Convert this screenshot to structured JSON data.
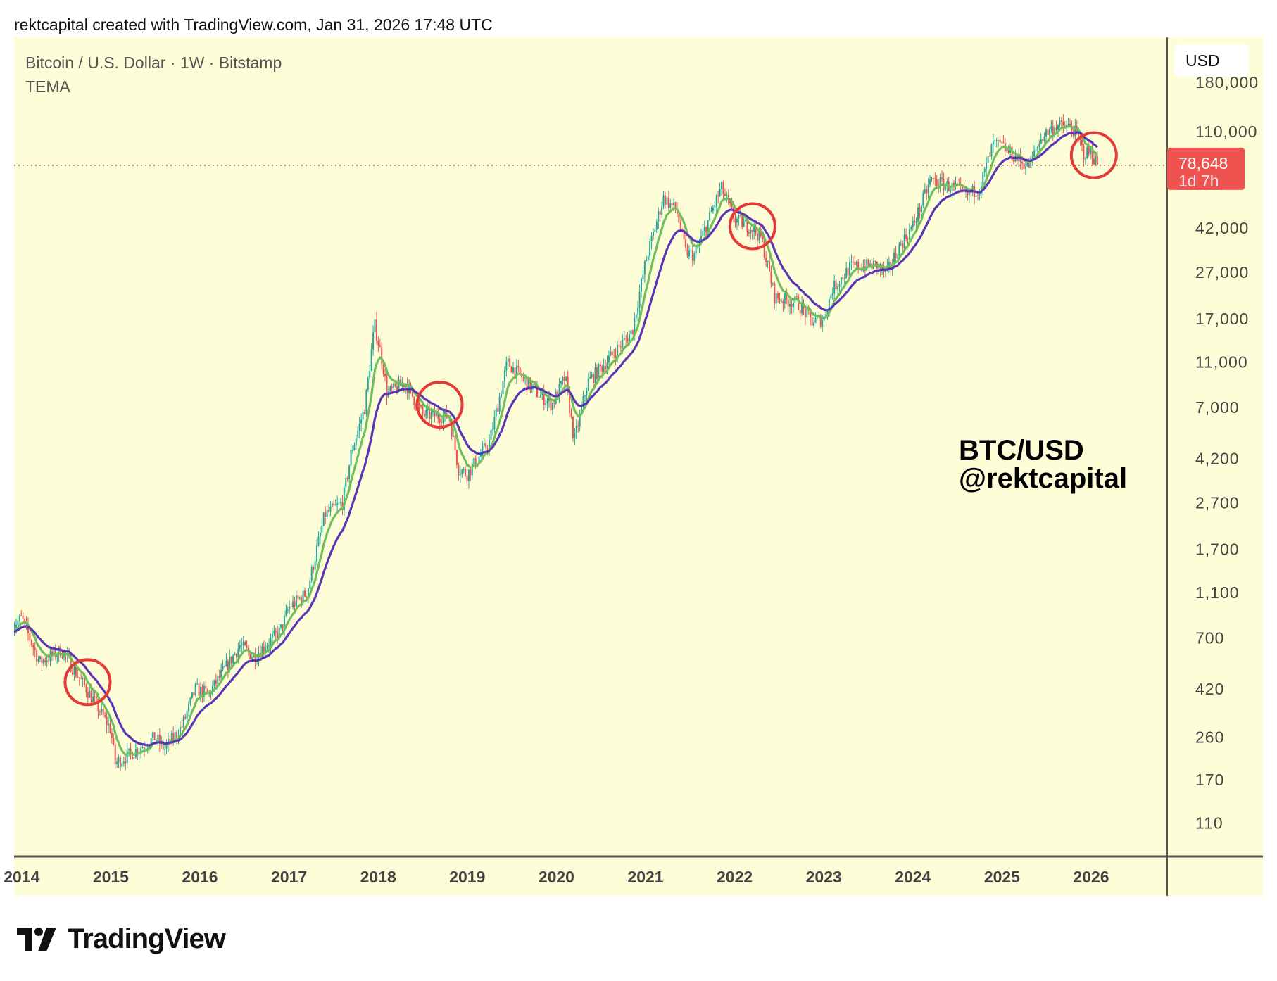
{
  "header": {
    "text": "rektcapital created with TradingView.com, Jan 31, 2026 17:48 UTC"
  },
  "logo": {
    "text": "TradingView"
  },
  "currency_button": "USD",
  "chart_data": {
    "type": "candlestick",
    "title": "Bitcoin / U.S. Dollar · 1W · Bitstamp",
    "indicator": "TEMA",
    "watermark": [
      "BTC/USD",
      "@rektcapital"
    ],
    "y_scale": "log",
    "ylim": [
      80,
      200000
    ],
    "xlim": [
      2013.9,
      2026.9
    ],
    "y_ticks": [
      "180,000",
      "110,000",
      "42,000",
      "27,000",
      "17,000",
      "11,000",
      "7,000",
      "4,200",
      "2,700",
      "1,700",
      "1,100",
      "700",
      "420",
      "260",
      "170",
      "110"
    ],
    "x_ticks": [
      "2014",
      "2015",
      "2016",
      "2017",
      "2018",
      "2019",
      "2020",
      "2021",
      "2022",
      "2023",
      "2024",
      "2025",
      "2026"
    ],
    "last_price": {
      "value": 78648,
      "label": "78,648",
      "countdown": "1d 7h",
      "color": "#ef5350"
    },
    "colors": {
      "up": "#26a69a",
      "down": "#ef5350",
      "tema_fast": "#6fbf5f",
      "tema_slow": "#5b35b5",
      "circle": "#e53935",
      "background": "#fdfdd8"
    },
    "price_path": [
      [
        2013.9,
        800
      ],
      [
        2014.0,
        850
      ],
      [
        2014.2,
        550
      ],
      [
        2014.45,
        620
      ],
      [
        2014.6,
        500
      ],
      [
        2014.8,
        380
      ],
      [
        2015.0,
        280
      ],
      [
        2015.05,
        200
      ],
      [
        2015.3,
        230
      ],
      [
        2015.5,
        260
      ],
      [
        2015.6,
        230
      ],
      [
        2015.8,
        290
      ],
      [
        2015.95,
        420
      ],
      [
        2016.1,
        400
      ],
      [
        2016.45,
        650
      ],
      [
        2016.6,
        580
      ],
      [
        2016.9,
        750
      ],
      [
        2017.0,
        950
      ],
      [
        2017.2,
        1100
      ],
      [
        2017.4,
        2400
      ],
      [
        2017.6,
        2700
      ],
      [
        2017.7,
        4500
      ],
      [
        2017.85,
        7000
      ],
      [
        2017.96,
        16000
      ],
      [
        2018.05,
        11000
      ],
      [
        2018.1,
        8000
      ],
      [
        2018.3,
        9000
      ],
      [
        2018.5,
        6500
      ],
      [
        2018.8,
        6400
      ],
      [
        2018.9,
        3800
      ],
      [
        2019.0,
        3600
      ],
      [
        2019.25,
        5000
      ],
      [
        2019.45,
        11000
      ],
      [
        2019.55,
        10000
      ],
      [
        2019.8,
        8000
      ],
      [
        2019.95,
        7200
      ],
      [
        2020.1,
        9500
      ],
      [
        2020.2,
        5000
      ],
      [
        2020.35,
        9000
      ],
      [
        2020.6,
        11500
      ],
      [
        2020.85,
        15000
      ],
      [
        2021.0,
        30000
      ],
      [
        2021.2,
        57000
      ],
      [
        2021.35,
        50000
      ],
      [
        2021.45,
        33000
      ],
      [
        2021.55,
        32000
      ],
      [
        2021.7,
        45000
      ],
      [
        2021.85,
        63000
      ],
      [
        2022.0,
        46000
      ],
      [
        2022.2,
        42000
      ],
      [
        2022.3,
        38000
      ],
      [
        2022.45,
        21000
      ],
      [
        2022.7,
        20000
      ],
      [
        2022.87,
        16500
      ],
      [
        2023.0,
        17000
      ],
      [
        2023.1,
        23000
      ],
      [
        2023.3,
        28500
      ],
      [
        2023.6,
        29000
      ],
      [
        2023.7,
        26500
      ],
      [
        2023.85,
        35000
      ],
      [
        2024.0,
        43000
      ],
      [
        2024.2,
        68000
      ],
      [
        2024.5,
        62000
      ],
      [
        2024.6,
        58000
      ],
      [
        2024.75,
        63000
      ],
      [
        2024.9,
        97000
      ],
      [
        2025.0,
        95000
      ],
      [
        2025.15,
        85000
      ],
      [
        2025.3,
        78000
      ],
      [
        2025.45,
        105000
      ],
      [
        2025.6,
        117000
      ],
      [
        2025.78,
        115000
      ],
      [
        2025.85,
        105000
      ],
      [
        2025.92,
        88000
      ],
      [
        2026.0,
        90000
      ],
      [
        2026.08,
        78648
      ]
    ],
    "circles": [
      [
        2014.74,
        450
      ],
      [
        2018.69,
        7200
      ],
      [
        2022.2,
        42800
      ],
      [
        2026.03,
        87000
      ]
    ]
  }
}
